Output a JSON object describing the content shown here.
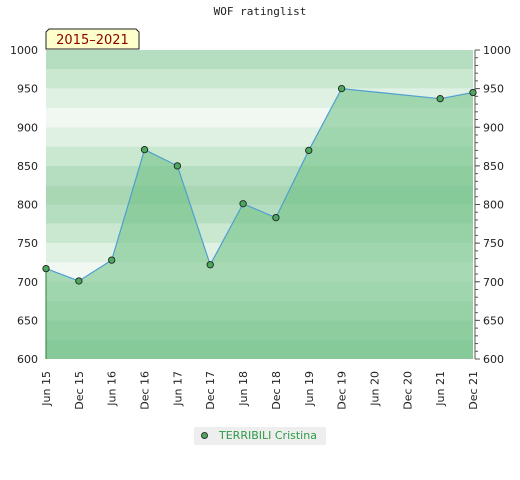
{
  "chart_data": {
    "type": "area",
    "title": "WOF ratinglist",
    "badge": "2015–2021",
    "categories": [
      "Jun 15",
      "Dec 15",
      "Jun 16",
      "Dec 16",
      "Jun 17",
      "Dec 17",
      "Jun 18",
      "Dec 18",
      "Jun 19",
      "Dec 19",
      "Jun 20",
      "Dec 20",
      "Jun 21",
      "Dec 21"
    ],
    "series": [
      {
        "name": "TERRIBILI Cristina",
        "points": [
          {
            "x": 0,
            "y": 717
          },
          {
            "x": 1,
            "y": 701
          },
          {
            "x": 2,
            "y": 728
          },
          {
            "x": 3,
            "y": 871
          },
          {
            "x": 4,
            "y": 850
          },
          {
            "x": 5,
            "y": 722
          },
          {
            "x": 6,
            "y": 801
          },
          {
            "x": 7,
            "y": 783
          },
          {
            "x": 8,
            "y": 870
          },
          {
            "x": 9,
            "y": 950
          },
          {
            "x": 12,
            "y": 937
          },
          {
            "x": 13,
            "y": 945
          }
        ]
      }
    ],
    "ylim": [
      600,
      1000
    ],
    "yticks": [
      600,
      650,
      700,
      750,
      800,
      850,
      900,
      950,
      1000
    ],
    "y_axis_both_sides": true,
    "grid": true,
    "legend_position": "bottom",
    "colors": {
      "line": "#4f9fd0",
      "marker": "#4ca85e",
      "area": "#6cbf84",
      "legend_text": "#2e9a46",
      "badge_bg": "#ffffcc",
      "badge_text": "#8b0000"
    }
  }
}
